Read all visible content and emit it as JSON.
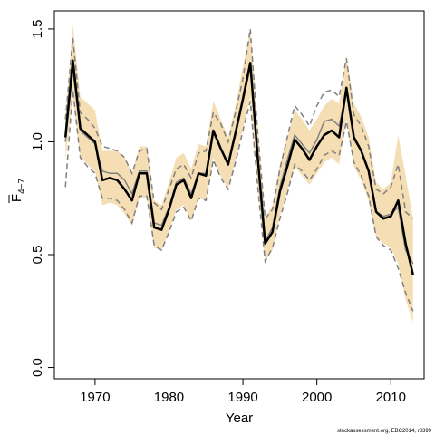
{
  "chart_data": {
    "type": "line",
    "xlabel": "Year",
    "ylabel": "F",
    "ylabel_subscript": "4−7",
    "xlim": [
      1964.5,
      2014.5
    ],
    "ylim": [
      -0.05,
      1.58
    ],
    "x_ticks": [
      1970,
      1980,
      1990,
      2000,
      2010
    ],
    "x_tick_labels": [
      "1970",
      "1980",
      "1990",
      "2000",
      "2010"
    ],
    "y_ticks": [
      0.0,
      0.5,
      1.0,
      1.5
    ],
    "y_tick_labels": [
      "0.0",
      "0.5",
      "1.0",
      "1.5"
    ],
    "grid": false,
    "credit": "stockassessment.org, EBC2014, r3399",
    "colors": {
      "band": "#f5deb3",
      "estimate": "#000000",
      "dashed": "#808080"
    },
    "x": [
      1966,
      1967,
      1968,
      1969,
      1970,
      1971,
      1972,
      1973,
      1974,
      1975,
      1976,
      1977,
      1978,
      1979,
      1980,
      1981,
      1982,
      1983,
      1984,
      1985,
      1986,
      1987,
      1988,
      1989,
      1990,
      1991,
      1992,
      1993,
      1994,
      1995,
      1996,
      1997,
      1998,
      1999,
      2000,
      2001,
      2002,
      2003,
      2004,
      2005,
      2006,
      2007,
      2008,
      2009,
      2010,
      2011,
      2012,
      2013
    ],
    "series": [
      {
        "role": "estimate",
        "values": [
          1.02,
          1.36,
          1.06,
          1.03,
          1.0,
          0.83,
          0.84,
          0.83,
          0.79,
          0.74,
          0.86,
          0.86,
          0.62,
          0.61,
          0.7,
          0.81,
          0.83,
          0.75,
          0.86,
          0.85,
          1.05,
          0.97,
          0.9,
          1.04,
          1.19,
          1.35,
          0.93,
          0.55,
          0.6,
          0.78,
          0.89,
          1.01,
          0.97,
          0.92,
          0.98,
          1.03,
          1.05,
          1.02,
          1.24,
          1.02,
          0.96,
          0.87,
          0.69,
          0.66,
          0.67,
          0.74,
          0.55,
          0.41
        ]
      },
      {
        "role": "band-upper",
        "values": [
          1.1,
          1.52,
          1.2,
          1.17,
          1.14,
          0.96,
          0.96,
          0.96,
          0.93,
          0.86,
          0.98,
          0.98,
          0.74,
          0.72,
          0.82,
          0.93,
          0.95,
          0.88,
          0.99,
          0.98,
          1.18,
          1.1,
          1.02,
          1.16,
          1.33,
          1.5,
          1.07,
          0.66,
          0.72,
          0.9,
          1.02,
          1.14,
          1.1,
          1.05,
          1.1,
          1.16,
          1.19,
          1.17,
          1.38,
          1.17,
          1.11,
          1.02,
          0.82,
          0.79,
          0.82,
          1.03,
          0.85,
          0.66
        ]
      },
      {
        "role": "band-lower",
        "values": [
          0.92,
          1.2,
          0.93,
          0.9,
          0.87,
          0.72,
          0.73,
          0.72,
          0.68,
          0.63,
          0.75,
          0.75,
          0.53,
          0.52,
          0.6,
          0.7,
          0.72,
          0.65,
          0.75,
          0.74,
          0.93,
          0.85,
          0.79,
          0.92,
          1.06,
          1.2,
          0.81,
          0.47,
          0.52,
          0.67,
          0.78,
          0.89,
          0.85,
          0.81,
          0.86,
          0.91,
          0.93,
          0.9,
          1.1,
          0.89,
          0.83,
          0.74,
          0.58,
          0.55,
          0.53,
          0.46,
          0.3,
          0.2
        ]
      },
      {
        "role": "dashed-upper",
        "values": [
          1.1,
          1.46,
          1.13,
          1.1,
          1.06,
          0.98,
          0.97,
          0.96,
          0.93,
          0.86,
          0.96,
          0.97,
          0.73,
          0.7,
          0.79,
          0.88,
          0.9,
          0.84,
          0.95,
          0.96,
          1.13,
          1.08,
          1.0,
          1.13,
          1.28,
          1.5,
          1.04,
          0.66,
          0.7,
          0.88,
          1.02,
          1.16,
          1.12,
          1.07,
          1.16,
          1.22,
          1.23,
          1.2,
          1.37,
          1.12,
          1.07,
          0.98,
          0.79,
          0.77,
          0.8,
          0.9,
          0.69,
          0.66
        ]
      },
      {
        "role": "dashed-mid",
        "values": [
          1.0,
          1.32,
          1.05,
          1.02,
          0.99,
          0.87,
          0.86,
          0.86,
          0.83,
          0.77,
          0.87,
          0.87,
          0.64,
          0.63,
          0.71,
          0.82,
          0.84,
          0.77,
          0.86,
          0.86,
          1.04,
          0.97,
          0.9,
          1.04,
          1.18,
          1.33,
          0.92,
          0.56,
          0.62,
          0.8,
          0.92,
          1.03,
          0.99,
          0.95,
          1.01,
          1.09,
          1.1,
          1.07,
          1.22,
          1.01,
          0.96,
          0.87,
          0.69,
          0.67,
          0.68,
          0.71,
          0.52,
          0.46
        ]
      },
      {
        "role": "dashed-lower",
        "values": [
          0.8,
          1.23,
          0.93,
          0.89,
          0.86,
          0.75,
          0.75,
          0.74,
          0.7,
          0.64,
          0.76,
          0.76,
          0.54,
          0.52,
          0.6,
          0.69,
          0.71,
          0.65,
          0.75,
          0.74,
          0.92,
          0.84,
          0.79,
          0.91,
          1.05,
          1.18,
          0.8,
          0.47,
          0.53,
          0.66,
          0.77,
          0.9,
          0.87,
          0.83,
          0.88,
          0.94,
          0.96,
          0.94,
          1.09,
          0.91,
          0.85,
          0.76,
          0.58,
          0.54,
          0.52,
          0.44,
          0.33,
          0.25
        ]
      }
    ]
  }
}
